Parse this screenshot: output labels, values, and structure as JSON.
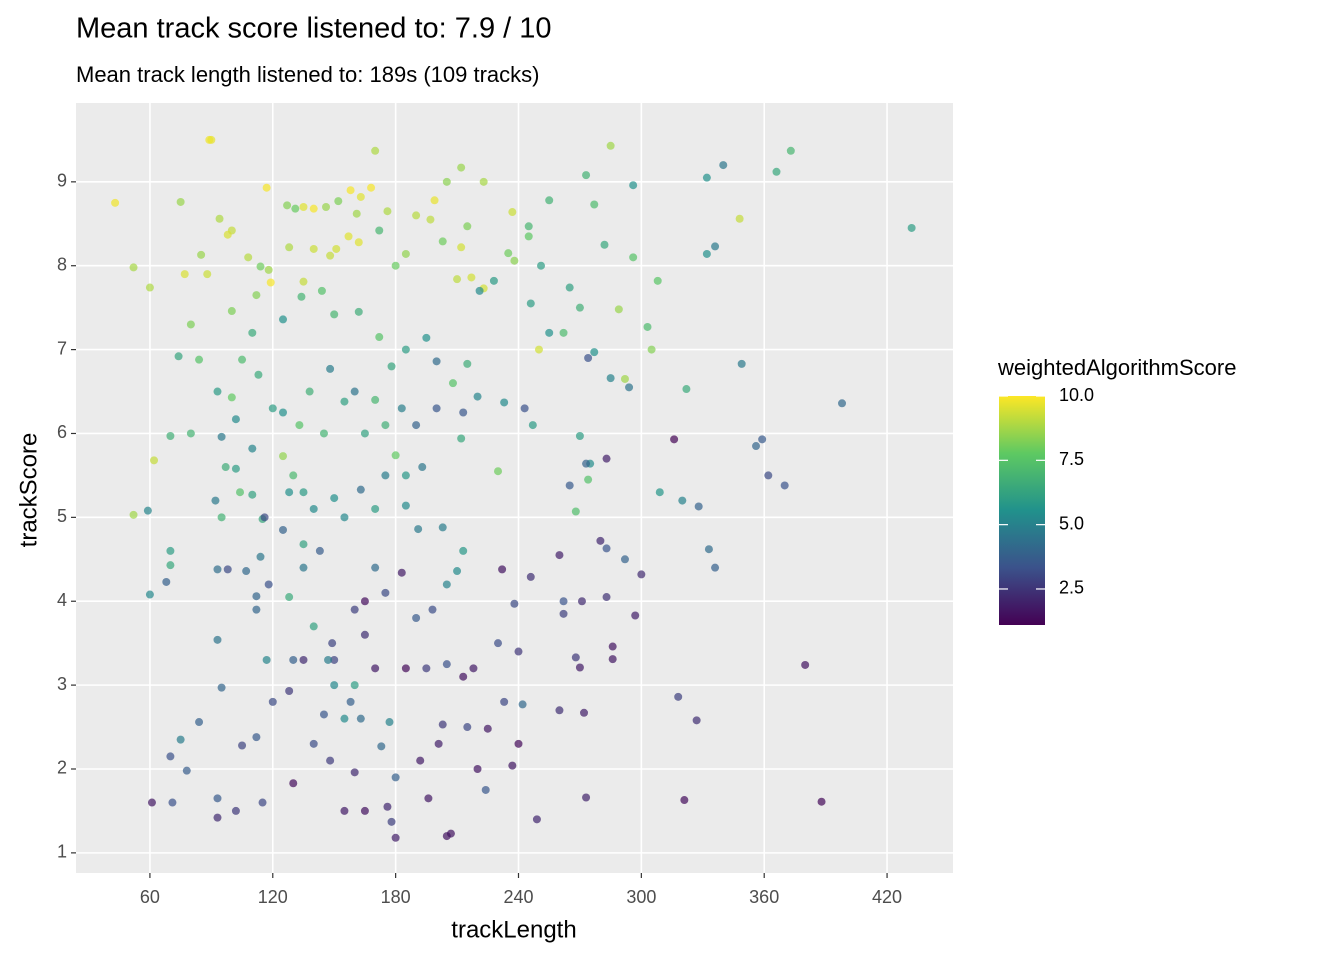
{
  "chart_data": {
    "type": "scatter",
    "title": "Mean track score listened to: 7.9 / 10",
    "subtitle": "Mean track length listened to: 189s (109 tracks)",
    "x_label": "trackLength",
    "y_label": "trackScore",
    "color_label": "weightedAlgorithmScore",
    "colorscale": [
      "#440154",
      "#3b528b",
      "#21918c",
      "#5ec962",
      "#fde725"
    ],
    "xlim": [
      23.9,
      452.2
    ],
    "ylim": [
      0.76,
      9.94
    ],
    "clim": [
      1.1,
      10
    ],
    "xticks": [
      60,
      120,
      180,
      240,
      300,
      360,
      420
    ],
    "yticks": [
      1,
      2,
      3,
      4,
      5,
      6,
      7,
      8,
      9
    ],
    "cticks": [
      {
        "value": 2.5,
        "label": "2.5"
      },
      {
        "value": 5,
        "label": "5.0"
      },
      {
        "value": 7.5,
        "label": "7.5"
      },
      {
        "value": 10,
        "label": "10.0"
      }
    ],
    "grid": true,
    "points": [
      [
        89,
        9.5,
        9.8
      ],
      [
        90,
        9.5,
        9.7
      ],
      [
        43,
        8.75,
        9.8
      ],
      [
        117,
        8.93,
        9.9
      ],
      [
        135,
        8.7,
        9.6
      ],
      [
        158,
        8.9,
        9.9
      ],
      [
        168,
        8.93,
        9.9
      ],
      [
        199,
        8.78,
        9.7
      ],
      [
        170,
        9.37,
        8.9
      ],
      [
        212,
        9.17,
        8.6
      ],
      [
        223,
        9.0,
        8.8
      ],
      [
        285,
        9.43,
        8.7
      ],
      [
        205,
        9.0,
        8.4
      ],
      [
        75,
        8.76,
        8.6
      ],
      [
        94,
        8.56,
        8.9
      ],
      [
        100,
        8.42,
        9.2
      ],
      [
        98,
        8.37,
        9.5
      ],
      [
        127,
        8.72,
        8.3
      ],
      [
        131,
        8.68,
        7.9
      ],
      [
        140,
        8.68,
        9.9
      ],
      [
        146,
        8.7,
        8.6
      ],
      [
        152,
        8.77,
        8.2
      ],
      [
        161,
        8.62,
        8.7
      ],
      [
        163,
        8.82,
        9.6
      ],
      [
        176,
        8.65,
        8.9
      ],
      [
        190,
        8.6,
        9
      ],
      [
        197,
        8.55,
        9.1
      ],
      [
        215,
        8.47,
        8.2
      ],
      [
        237,
        8.64,
        9.3
      ],
      [
        245,
        8.47,
        7.0
      ],
      [
        245,
        8.35,
        7.7
      ],
      [
        235,
        8.15,
        8.0
      ],
      [
        238,
        8.06,
        8.4
      ],
      [
        212,
        8.22,
        9.4
      ],
      [
        203,
        8.29,
        8.0
      ],
      [
        172,
        8.42,
        7.0
      ],
      [
        157,
        8.35,
        9.6
      ],
      [
        151,
        8.2,
        9.4
      ],
      [
        148,
        8.12,
        9.2
      ],
      [
        52,
        7.98,
        8.8
      ],
      [
        60,
        7.74,
        8.9
      ],
      [
        77,
        7.9,
        9.5
      ],
      [
        85,
        8.13,
        8.6
      ],
      [
        88,
        7.9,
        9.3
      ],
      [
        114,
        7.99,
        8.0
      ],
      [
        118,
        7.95,
        8.7
      ],
      [
        119,
        7.8,
        9.9
      ],
      [
        135,
        7.81,
        9.2
      ],
      [
        128,
        8.22,
        8.9
      ],
      [
        108,
        8.1,
        9.0
      ],
      [
        140,
        8.2,
        9.3
      ],
      [
        162,
        8.28,
        9.6
      ],
      [
        180,
        8.0,
        7.9
      ],
      [
        185,
        8.14,
        8.5
      ],
      [
        210,
        7.84,
        9.1
      ],
      [
        217,
        7.86,
        9.4
      ],
      [
        223,
        7.73,
        9.4
      ],
      [
        228,
        7.82,
        5.9
      ],
      [
        221,
        7.7,
        5.3
      ],
      [
        251,
        8.0,
        6.0
      ],
      [
        246,
        7.55,
        6.0
      ],
      [
        273,
        9.08,
        6.8
      ],
      [
        277,
        8.73,
        7.2
      ],
      [
        296,
        8.96,
        5.6
      ],
      [
        255,
        8.78,
        6.8
      ],
      [
        282,
        8.25,
        6.4
      ],
      [
        296,
        8.1,
        7.5
      ],
      [
        332,
        9.05,
        5.6
      ],
      [
        340,
        9.2,
        4.6
      ],
      [
        348,
        8.56,
        9.2
      ],
      [
        366,
        9.12,
        6.4
      ],
      [
        373,
        9.37,
        7.0
      ],
      [
        432,
        8.45,
        6.0
      ],
      [
        336,
        8.23,
        4.7
      ],
      [
        332,
        8.14,
        5.5
      ],
      [
        308,
        7.82,
        7.6
      ],
      [
        265,
        7.74,
        6.1
      ],
      [
        270,
        7.5,
        6.7
      ],
      [
        289,
        7.48,
        8.6
      ],
      [
        303,
        7.27,
        7.2
      ],
      [
        305,
        7.0,
        8.3
      ],
      [
        262,
        7.2,
        7.2
      ],
      [
        250,
        7.0,
        9.4
      ],
      [
        255,
        7.2,
        5.6
      ],
      [
        277,
        6.97,
        5.6
      ],
      [
        274,
        6.9,
        3.3
      ],
      [
        285,
        6.66,
        5.0
      ],
      [
        292,
        6.65,
        8.7
      ],
      [
        294,
        6.55,
        4.5
      ],
      [
        322,
        6.53,
        6.5
      ],
      [
        349,
        6.83,
        4.7
      ],
      [
        398,
        6.36,
        4.1
      ],
      [
        359,
        5.93,
        3.6
      ],
      [
        356,
        5.85,
        4.0
      ],
      [
        362,
        5.5,
        3.1
      ],
      [
        370,
        5.38,
        3.4
      ],
      [
        333,
        4.62,
        4.2
      ],
      [
        336,
        4.4,
        3.8
      ],
      [
        316,
        5.93,
        1.2
      ],
      [
        309,
        5.3,
        5.7
      ],
      [
        320,
        5.2,
        5.0
      ],
      [
        328,
        5.13,
        3.9
      ],
      [
        275,
        5.64,
        5.4
      ],
      [
        283,
        5.7,
        1.9
      ],
      [
        273,
        5.64,
        3.9
      ],
      [
        274,
        5.45,
        7.4
      ],
      [
        265,
        5.38,
        3.6
      ],
      [
        268,
        5.07,
        7.3
      ],
      [
        270,
        5.97,
        6.0
      ],
      [
        247,
        6.1,
        5.9
      ],
      [
        243,
        6.3,
        3.3
      ],
      [
        233,
        6.37,
        5.3
      ],
      [
        230,
        5.55,
        8.0
      ],
      [
        212,
        5.94,
        6.4
      ],
      [
        213,
        6.25,
        3.5
      ],
      [
        220,
        6.44,
        5.1
      ],
      [
        215,
        6.83,
        6.6
      ],
      [
        200,
        6.86,
        4.2
      ],
      [
        195,
        7.14,
        5.6
      ],
      [
        185,
        7.0,
        6.0
      ],
      [
        172,
        7.15,
        7.5
      ],
      [
        162,
        7.45,
        6.6
      ],
      [
        150,
        7.42,
        7.0
      ],
      [
        144,
        7.7,
        7.4
      ],
      [
        134,
        7.63,
        6.9
      ],
      [
        125,
        7.36,
        5.6
      ],
      [
        112,
        7.65,
        8.3
      ],
      [
        110,
        7.2,
        6.5
      ],
      [
        100,
        7.46,
        8.2
      ],
      [
        80,
        7.3,
        8.2
      ],
      [
        74,
        6.92,
        6.3
      ],
      [
        84,
        6.88,
        7.5
      ],
      [
        93,
        6.5,
        5.9
      ],
      [
        95,
        5.96,
        4.7
      ],
      [
        102,
        6.17,
        5.3
      ],
      [
        110,
        5.82,
        5.1
      ],
      [
        97,
        5.6,
        6.6
      ],
      [
        104,
        5.3,
        7.4
      ],
      [
        110,
        5.27,
        6.2
      ],
      [
        92,
        5.2,
        4.7
      ],
      [
        95,
        5.0,
        6.8
      ],
      [
        98,
        4.38,
        3.1
      ],
      [
        93,
        4.38,
        4.3
      ],
      [
        59,
        5.08,
        5.1
      ],
      [
        52,
        5.03,
        8.7
      ],
      [
        62,
        5.68,
        9.2
      ],
      [
        70,
        5.97,
        6.7
      ],
      [
        80,
        6.0,
        6.9
      ],
      [
        70,
        4.6,
        6.0
      ],
      [
        70,
        4.43,
        6.4
      ],
      [
        68,
        4.23,
        3.8
      ],
      [
        60,
        4.08,
        5.2
      ],
      [
        93,
        3.54,
        4.5
      ],
      [
        95,
        2.97,
        4.0
      ],
      [
        75,
        2.35,
        4.8
      ],
      [
        70,
        2.15,
        3.3
      ],
      [
        78,
        1.98,
        3.7
      ],
      [
        84,
        2.56,
        3.8
      ],
      [
        61,
        1.6,
        1.7
      ],
      [
        71,
        1.6,
        3.3
      ],
      [
        93,
        1.65,
        3.6
      ],
      [
        93,
        1.42,
        2.2
      ],
      [
        102,
        1.5,
        2.6
      ],
      [
        115,
        1.6,
        3.0
      ],
      [
        130,
        1.83,
        1.4
      ],
      [
        105,
        2.28,
        2.9
      ],
      [
        112,
        2.38,
        3.6
      ],
      [
        120,
        2.8,
        3.1
      ],
      [
        128,
        2.93,
        2.6
      ],
      [
        135,
        3.3,
        2.2
      ],
      [
        150,
        3.3,
        2.9
      ],
      [
        140,
        2.3,
        3.2
      ],
      [
        148,
        2.1,
        2.7
      ],
      [
        155,
        1.5,
        1.8
      ],
      [
        165,
        1.5,
        1.5
      ],
      [
        160,
        1.96,
        2.2
      ],
      [
        176,
        1.55,
        2.1
      ],
      [
        178,
        1.37,
        2.8
      ],
      [
        180,
        1.18,
        1.9
      ],
      [
        205,
        1.2,
        1.6
      ],
      [
        207,
        1.23,
        1.6
      ],
      [
        196,
        1.65,
        1.7
      ],
      [
        192,
        2.1,
        1.8
      ],
      [
        180,
        1.9,
        3.8
      ],
      [
        203,
        2.53,
        2.6
      ],
      [
        201,
        2.3,
        1.9
      ],
      [
        215,
        2.5,
        3.0
      ],
      [
        225,
        2.48,
        1.7
      ],
      [
        220,
        2.0,
        1.6
      ],
      [
        237,
        2.04,
        1.7
      ],
      [
        240,
        2.3,
        1.3
      ],
      [
        249,
        1.4,
        2.1
      ],
      [
        224,
        1.75,
        3.5
      ],
      [
        233,
        2.8,
        3.0
      ],
      [
        242,
        2.77,
        4.1
      ],
      [
        260,
        2.7,
        2.3
      ],
      [
        272,
        2.67,
        1.9
      ],
      [
        273,
        1.66,
        2.0
      ],
      [
        321,
        1.63,
        1.4
      ],
      [
        388,
        1.61,
        1.3
      ],
      [
        380,
        3.24,
        1.6
      ],
      [
        318,
        2.86,
        2.8
      ],
      [
        327,
        2.58,
        2.3
      ],
      [
        297,
        3.83,
        1.9
      ],
      [
        300,
        4.32,
        2.2
      ],
      [
        286,
        3.46,
        1.6
      ],
      [
        286,
        3.31,
        1.7
      ],
      [
        262,
        3.85,
        2.8
      ],
      [
        268,
        3.33,
        2.6
      ],
      [
        270,
        3.21,
        1.8
      ],
      [
        262,
        4.0,
        3.4
      ],
      [
        271,
        4.0,
        2.2
      ],
      [
        283,
        4.05,
        2.4
      ],
      [
        292,
        4.5,
        3.9
      ],
      [
        280,
        4.72,
        2.1
      ],
      [
        283,
        4.63,
        3.4
      ],
      [
        260,
        4.55,
        1.9
      ],
      [
        246,
        4.29,
        2.3
      ],
      [
        232,
        4.38,
        1.6
      ],
      [
        238,
        3.97,
        3.1
      ],
      [
        240,
        3.4,
        2.5
      ],
      [
        230,
        3.5,
        3.2
      ],
      [
        218,
        3.2,
        1.8
      ],
      [
        205,
        3.25,
        3.3
      ],
      [
        213,
        3.1,
        1.5
      ],
      [
        195,
        3.2,
        2.7
      ],
      [
        185,
        3.2,
        1.3
      ],
      [
        170,
        3.2,
        1.8
      ],
      [
        165,
        3.6,
        2.3
      ],
      [
        175,
        4.1,
        3.1
      ],
      [
        183,
        4.34,
        1.8
      ],
      [
        190,
        3.8,
        3.6
      ],
      [
        198,
        3.9,
        3.2
      ],
      [
        205,
        4.2,
        5.0
      ],
      [
        210,
        4.36,
        5.3
      ],
      [
        213,
        4.6,
        5.8
      ],
      [
        203,
        4.88,
        4.8
      ],
      [
        191,
        4.86,
        4.7
      ],
      [
        185,
        5.14,
        5.3
      ],
      [
        175,
        5.5,
        4.8
      ],
      [
        170,
        5.1,
        6.0
      ],
      [
        163,
        5.33,
        4.2
      ],
      [
        155,
        5.0,
        5.2
      ],
      [
        150,
        5.23,
        5.5
      ],
      [
        140,
        5.1,
        5.3
      ],
      [
        135,
        4.68,
        6.2
      ],
      [
        125,
        4.85,
        3.9
      ],
      [
        115,
        4.98,
        6.4
      ],
      [
        114,
        4.53,
        4.6
      ],
      [
        107,
        4.36,
        4.1
      ],
      [
        118,
        4.2,
        3.3
      ],
      [
        112,
        3.9,
        4.0
      ],
      [
        112,
        4.06,
        4.0
      ],
      [
        117,
        3.3,
        5.1
      ],
      [
        130,
        3.3,
        3.8
      ],
      [
        140,
        3.7,
        6.2
      ],
      [
        147,
        3.3,
        4.8
      ],
      [
        150,
        3.0,
        5.2
      ],
      [
        160,
        3.0,
        6.0
      ],
      [
        155,
        2.6,
        5.3
      ],
      [
        163,
        2.6,
        4.2
      ],
      [
        177,
        2.56,
        5.0
      ],
      [
        173,
        2.27,
        4.1
      ],
      [
        158,
        2.8,
        3.8
      ],
      [
        145,
        2.65,
        3.5
      ],
      [
        165,
        4.0,
        1.4
      ],
      [
        160,
        3.9,
        2.8
      ],
      [
        149,
        3.5,
        2.9
      ],
      [
        170,
        4.4,
        4.2
      ],
      [
        143,
        4.6,
        3.7
      ],
      [
        135,
        4.4,
        4.6
      ],
      [
        128,
        4.05,
        6.5
      ],
      [
        128,
        5.3,
        5.5
      ],
      [
        145,
        6.0,
        6.9
      ],
      [
        155,
        6.38,
        6.1
      ],
      [
        160,
        6.5,
        4.5
      ],
      [
        148,
        6.77,
        4.8
      ],
      [
        138,
        6.5,
        6.7
      ],
      [
        133,
        6.1,
        7.5
      ],
      [
        125,
        6.25,
        5.5
      ],
      [
        120,
        6.3,
        6.0
      ],
      [
        125,
        5.73,
        8.5
      ],
      [
        113,
        6.7,
        6.5
      ],
      [
        105,
        6.88,
        7.2
      ],
      [
        100,
        6.43,
        7.8
      ],
      [
        175,
        6.1,
        6.7
      ],
      [
        183,
        6.3,
        4.9
      ],
      [
        190,
        6.1,
        3.9
      ],
      [
        200,
        6.3,
        3.5
      ],
      [
        208,
        6.6,
        7.5
      ],
      [
        193,
        5.6,
        4.6
      ],
      [
        185,
        5.5,
        5.8
      ],
      [
        180,
        5.74,
        7.8
      ],
      [
        178,
        6.8,
        6.3
      ],
      [
        170,
        6.4,
        7.0
      ],
      [
        165,
        6.0,
        6.2
      ],
      [
        130,
        5.5,
        7.1
      ],
      [
        135,
        5.3,
        5.9
      ],
      [
        102,
        5.58,
        6.0
      ],
      [
        116,
        5.0,
        3.1
      ]
    ]
  }
}
